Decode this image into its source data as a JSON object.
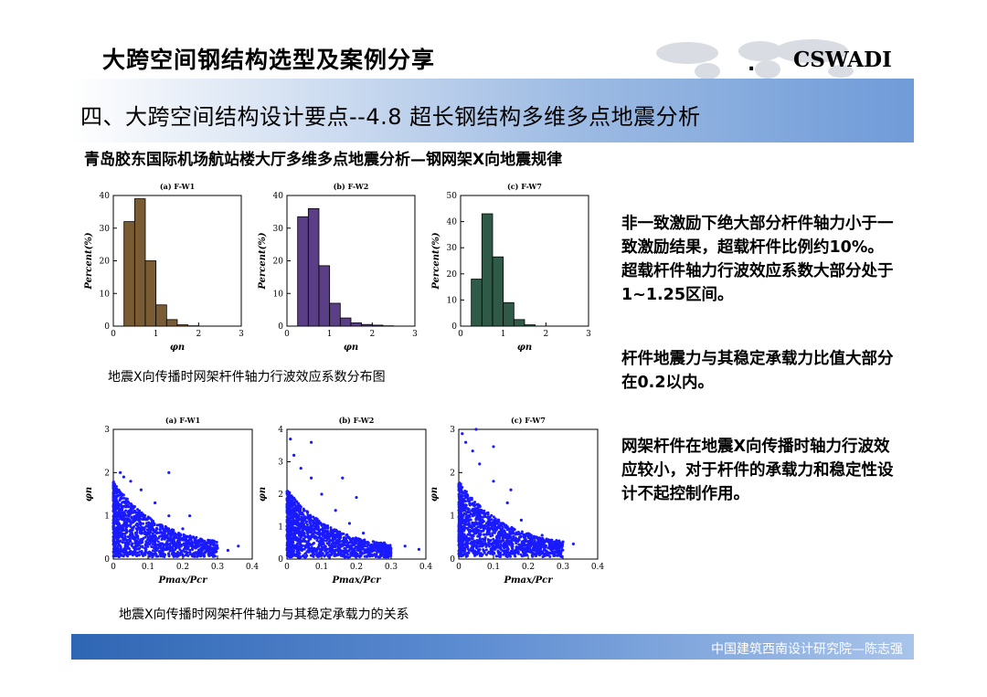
{
  "header": {
    "main_title": "大跨空间钢结构选型及案例分享",
    "brand": "CSWADI",
    "brand_dot": "."
  },
  "section_title": "四、大跨空间结构设计要点--4.8 超长钢结构多维多点地震分析",
  "subtitle": "青岛胶东国际机场航站楼大厅多维多点地震分析—钢网架X向地震规律",
  "captions": {
    "hist": "地震X向传播时网架杆件轴力行波效应系数分布图",
    "scatter": "地震X向传播时网架杆件轴力与其稳定承载力的关系"
  },
  "bullets": [
    "非一致激励下绝大部分杆件轴力小于一致激励结果，超载杆件比例约10%。超载杆件轴力行波效应系数大部分处于1~1.25区间。",
    "杆件地震力与其稳定承载力比值大部分在0.2以内。",
    "网架杆件在地震X向传播时轴力行波效应较小，对于杆件的承载力和稳定性设计不起控制作用。"
  ],
  "footer": "中国建筑西南设计研究院—陈志强",
  "chart_data": [
    {
      "type": "bar",
      "title": "(a) F-W1",
      "xlabel": "φn",
      "ylabel": "Percent(%)",
      "xlim": [
        0,
        3
      ],
      "ylim": [
        0,
        40
      ],
      "xticks": [
        "0",
        "1",
        "2",
        "3"
      ],
      "yticks": [
        "0",
        "10",
        "20",
        "30",
        "40"
      ],
      "bin_width": 0.25,
      "bin_starts": [
        0.25,
        0.5,
        0.75,
        1.0,
        1.25,
        1.5,
        1.75
      ],
      "values": [
        32,
        39,
        20,
        6.5,
        2,
        0.4,
        0.1
      ],
      "color": "#7a5c34"
    },
    {
      "type": "bar",
      "title": "(b) F-W2",
      "xlabel": "φn",
      "ylabel": "Percent(%)",
      "xlim": [
        0,
        3
      ],
      "ylim": [
        0,
        40
      ],
      "xticks": [
        "0",
        "1",
        "2",
        "3"
      ],
      "yticks": [
        "0",
        "10",
        "20",
        "30",
        "40"
      ],
      "bin_width": 0.25,
      "bin_starts": [
        0.25,
        0.5,
        0.75,
        1.0,
        1.25,
        1.5,
        1.75,
        2.0,
        2.25
      ],
      "values": [
        33.5,
        36,
        18.5,
        7,
        2.5,
        1,
        0.5,
        0.3,
        0.1
      ],
      "color": "#5b3f86"
    },
    {
      "type": "bar",
      "title": "(c) F-W7",
      "xlabel": "φn",
      "ylabel": "Percent(%)",
      "xlim": [
        0,
        3
      ],
      "ylim": [
        0,
        50
      ],
      "xticks": [
        "0",
        "1",
        "2",
        "3"
      ],
      "yticks": [
        "0",
        "10",
        "20",
        "30",
        "40",
        "50"
      ],
      "bin_width": 0.25,
      "bin_starts": [
        0.25,
        0.5,
        0.75,
        1.0,
        1.25,
        1.5
      ],
      "values": [
        18,
        43,
        26.5,
        9,
        2.5,
        0.5
      ],
      "color": "#2f5a48"
    },
    {
      "type": "scatter",
      "title": "(a) F-W1",
      "xlabel": "Pmax/Pcr",
      "ylabel": "φn",
      "xlim": [
        0,
        0.4
      ],
      "ylim": [
        0,
        3
      ],
      "xticks": [
        "0",
        "0.1",
        "0.2",
        "0.3",
        "0.4"
      ],
      "yticks": [
        "0",
        "1",
        "2",
        "3"
      ],
      "color": "#1a1aff",
      "points": [
        [
          0.02,
          2.0
        ],
        [
          0.03,
          1.9
        ],
        [
          0.05,
          1.8
        ],
        [
          0.08,
          1.6
        ],
        [
          0.12,
          1.3
        ],
        [
          0.16,
          1.0
        ],
        [
          0.2,
          0.7
        ],
        [
          0.25,
          0.45
        ],
        [
          0.28,
          0.35
        ],
        [
          0.3,
          0.25
        ],
        [
          0.33,
          0.2
        ],
        [
          0.36,
          0.3
        ],
        [
          0.22,
          1.0
        ],
        [
          0.16,
          2.0
        ]
      ]
    },
    {
      "type": "scatter",
      "title": "(b) F-W2",
      "xlabel": "Pmax/Pcr",
      "ylabel": "φn",
      "xlim": [
        0,
        0.4
      ],
      "ylim": [
        0,
        4
      ],
      "xticks": [
        "0",
        "0.1",
        "0.2",
        "0.3",
        "0.4"
      ],
      "yticks": [
        "0",
        "1",
        "2",
        "3",
        "4"
      ],
      "color": "#1a1aff",
      "points": [
        [
          0.01,
          3.7
        ],
        [
          0.02,
          3.2
        ],
        [
          0.04,
          2.8
        ],
        [
          0.07,
          2.5
        ],
        [
          0.1,
          2.0
        ],
        [
          0.14,
          1.5
        ],
        [
          0.18,
          1.1
        ],
        [
          0.22,
          0.8
        ],
        [
          0.28,
          0.5
        ],
        [
          0.34,
          0.4
        ],
        [
          0.38,
          0.3
        ],
        [
          0.07,
          3.6
        ],
        [
          0.16,
          2.5
        ],
        [
          0.2,
          1.9
        ]
      ]
    },
    {
      "type": "scatter",
      "title": "(c) F-W7",
      "xlabel": "Pmax/Pcr",
      "ylabel": "φn",
      "xlim": [
        0,
        0.4
      ],
      "ylim": [
        0,
        3
      ],
      "xticks": [
        "0",
        "0.1",
        "0.2",
        "0.3",
        "0.4"
      ],
      "yticks": [
        "0",
        "1",
        "2",
        "3"
      ],
      "color": "#1a1aff",
      "points": [
        [
          0.01,
          2.9
        ],
        [
          0.02,
          2.7
        ],
        [
          0.04,
          2.5
        ],
        [
          0.06,
          2.2
        ],
        [
          0.1,
          1.8
        ],
        [
          0.14,
          1.3
        ],
        [
          0.18,
          0.9
        ],
        [
          0.24,
          0.55
        ],
        [
          0.3,
          0.4
        ],
        [
          0.33,
          0.35
        ],
        [
          0.05,
          3.0
        ],
        [
          0.1,
          2.6
        ],
        [
          0.15,
          1.6
        ],
        [
          0.28,
          0.3
        ]
      ]
    }
  ]
}
